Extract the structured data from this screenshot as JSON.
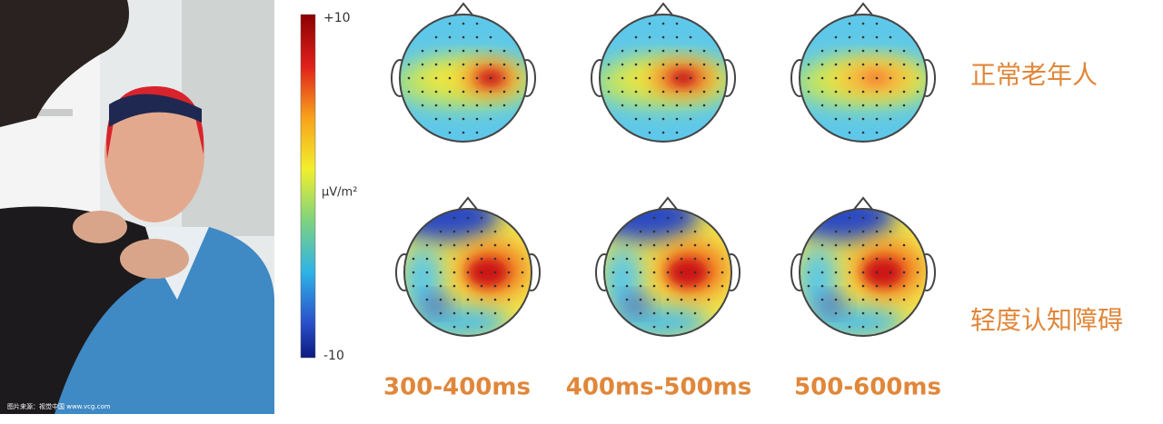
{
  "photo": {
    "credit": "图片来源：视觉中国 www.vcg.com"
  },
  "colorbar": {
    "max_label": "+10",
    "unit": "μV/m²",
    "min_label": "-10"
  },
  "rows": [
    "正常老年人",
    "轻度认知障碍"
  ],
  "time_windows": [
    "300-400ms",
    "400ms-500ms",
    "500-600ms"
  ]
}
